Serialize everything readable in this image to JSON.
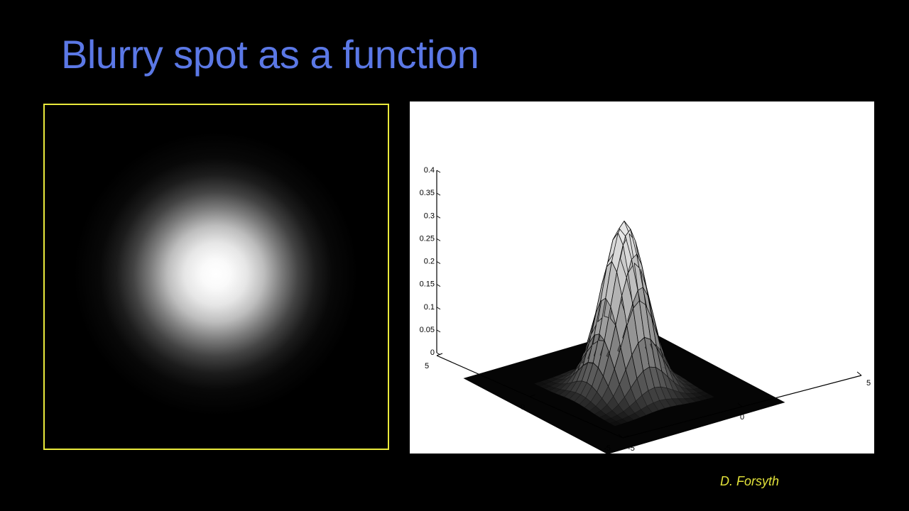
{
  "slide": {
    "title": "Blurry spot as a function",
    "credit": "D. Forsyth",
    "title_color": "#5b78e6",
    "frame_color": "#eaea3c",
    "credit_color": "#e3e33a"
  },
  "chart_data": {
    "type": "surface",
    "function": "2D Gaussian",
    "sigma": 1,
    "x": [
      -5,
      5
    ],
    "y": [
      -5,
      5
    ],
    "zlim": [
      0,
      0.4
    ],
    "peak": 0.37,
    "z_ticks": [
      "0",
      "0.05",
      "0.1",
      "0.15",
      "0.2",
      "0.25",
      "0.3",
      "0.35",
      "0.4"
    ],
    "x_ticks": [
      "-5",
      "0",
      "5"
    ],
    "y_ticks": [
      "-5",
      "0",
      "5"
    ],
    "grid": false,
    "colormap": "gray"
  }
}
